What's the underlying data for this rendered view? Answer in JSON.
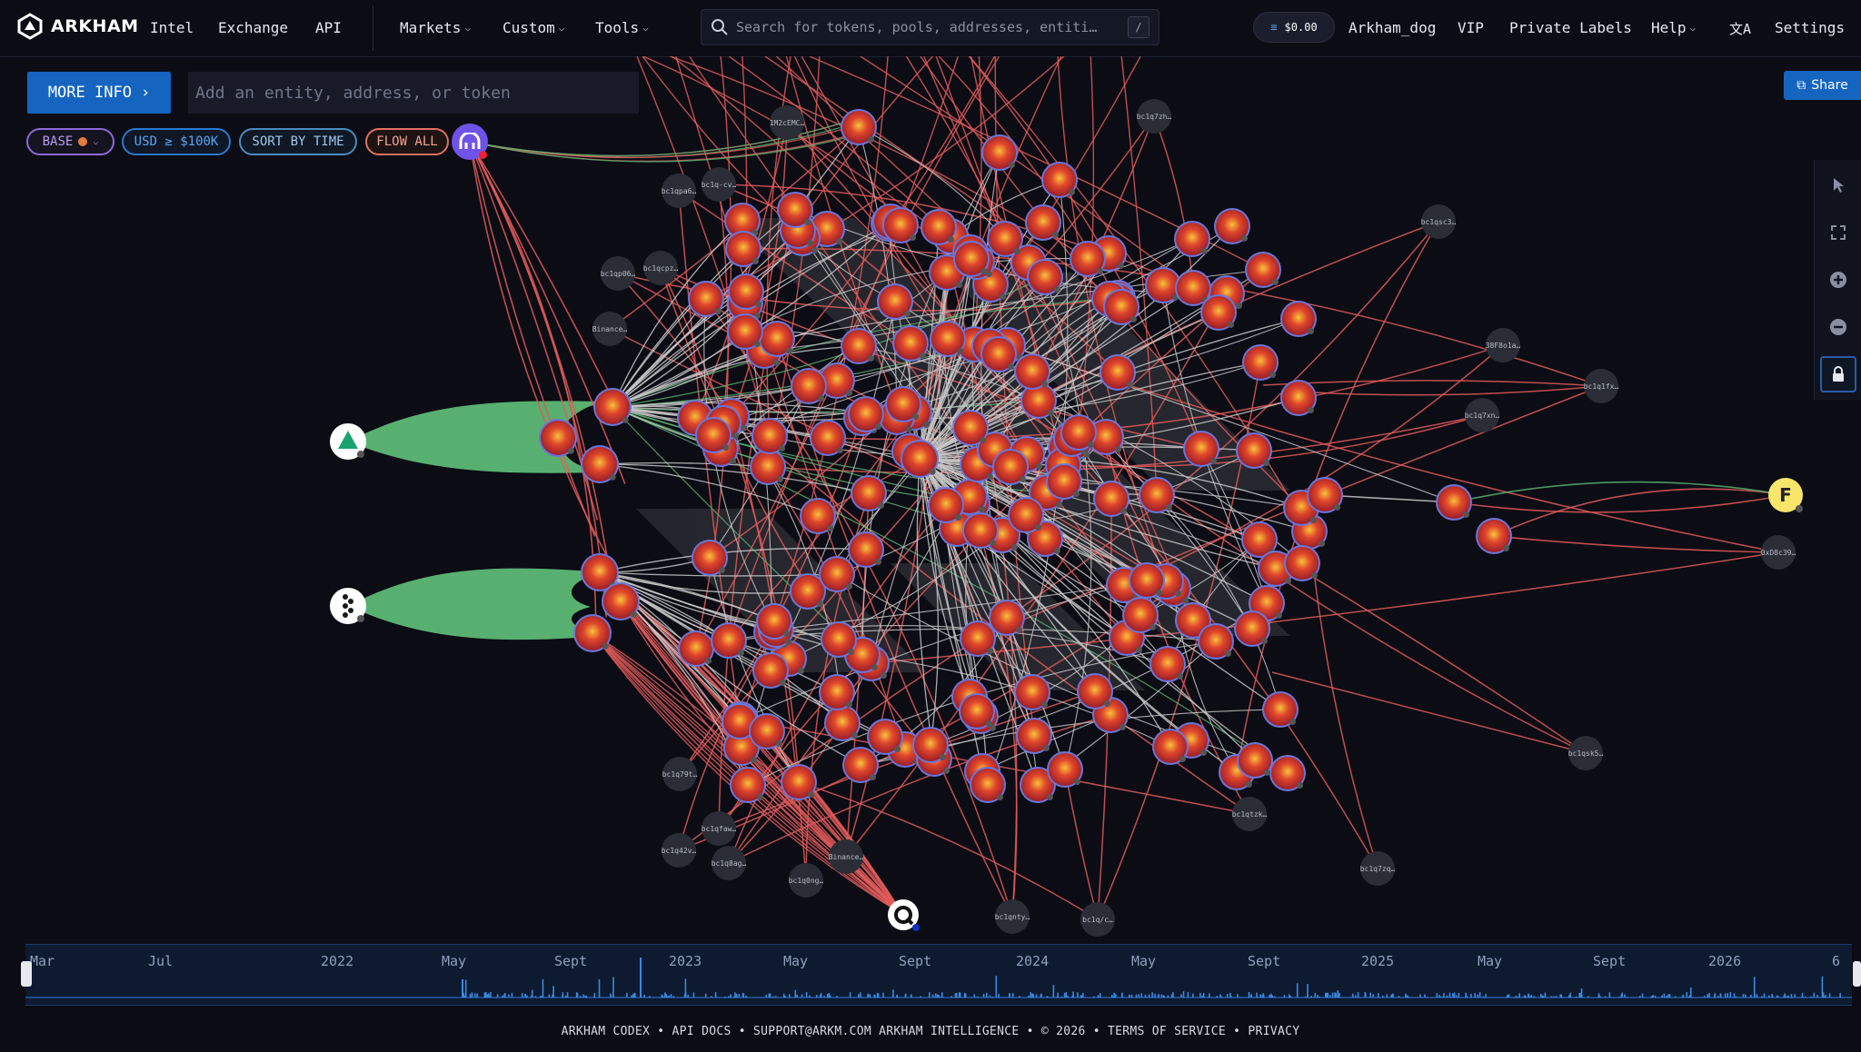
{
  "header": {
    "brand": "ARKHAM",
    "nav": [
      {
        "label": "Intel"
      },
      {
        "label": "Exchange"
      },
      {
        "label": "API"
      }
    ],
    "menus": [
      {
        "label": "Markets"
      },
      {
        "label": "Custom"
      },
      {
        "label": "Tools"
      }
    ],
    "search_placeholder": "Search for tokens, pools, addresses, entiti…",
    "search_shortcut": "/",
    "wallet_balance": "$0.00",
    "username": "Arkham_dog",
    "vip": "VIP",
    "private_labels": "Private Labels",
    "help": "Help",
    "settings": "Settings"
  },
  "toolbar": {
    "more_info": "MORE INFO",
    "entity_placeholder": "Add an entity, address, or token",
    "filters": {
      "base": "BASE",
      "usd": "USD ≥ $100K",
      "sort": "SORT BY TIME",
      "flow": "FLOW ALL"
    },
    "share": "Share"
  },
  "graph": {
    "labels": {
      "n1": "1M2cEMC…",
      "n2": "bc1q7zh…",
      "n3": "bc1qpa6…",
      "n4": "bc1q-cv…",
      "n5": "bc1qp06…",
      "n6": "bc1qcpz…",
      "n7": "Binance…",
      "n8": "bc1qsc3…",
      "n9": "38F8o1a…",
      "n10": "bc1q1fx…",
      "n11": "bc1q7xn…",
      "n12": "0xD8c39…",
      "n13": "bc1q79t…",
      "n14": "bc1qfaw…",
      "n15": "bc1q42v…",
      "n16": "bc1q8ag…",
      "n17": "bc1q0ng…",
      "n18": "Binance…",
      "n19": "bc1qnty…",
      "n20": "bc1q/c…",
      "n21": "bc1qtzk…",
      "n22": "bc1q7zq…",
      "n23": "bc1qsk5…",
      "fnode": "F"
    }
  },
  "timeline": {
    "labels": [
      "Mar",
      "Jul",
      "2022",
      "May",
      "Sept",
      "2023",
      "May",
      "Sept",
      "2024",
      "May",
      "Sept",
      "2025",
      "May",
      "Sept",
      "2026",
      "6"
    ]
  },
  "footer": {
    "text": "ARKHAM CODEX • API DOCS • SUPPORT@ARKM.COM ARKHAM INTELLIGENCE • © 2026 • TERMS OF SERVICE • PRIVACY"
  },
  "colors": {
    "accent": "#1565c0",
    "inflow": "#e05a5a",
    "outflow": "#58b070",
    "neutral": "#c8c8c8",
    "node": "#d63a2a"
  }
}
